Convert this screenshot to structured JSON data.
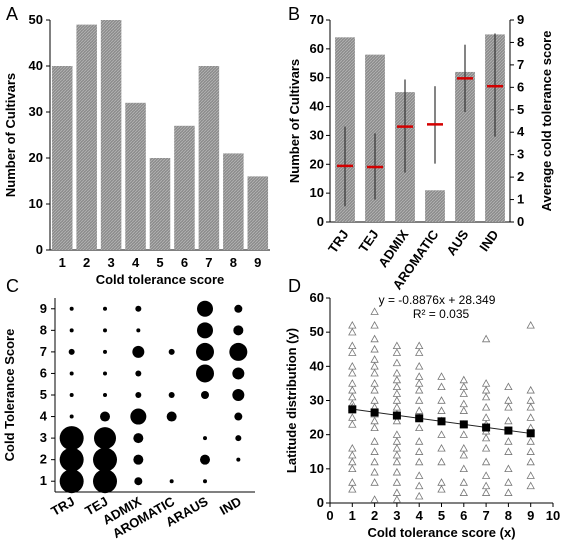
{
  "panel_letters": {
    "A": "A",
    "B": "B",
    "C": "C",
    "D": "D"
  },
  "chart_data": [
    {
      "panel": "A",
      "type": "bar",
      "categories": [
        "1",
        "2",
        "3",
        "4",
        "5",
        "6",
        "7",
        "8",
        "9"
      ],
      "values": [
        40,
        49,
        50,
        32,
        20,
        27,
        40,
        21,
        16
      ],
      "xlabel": "Cold tolerance score",
      "ylabel": "Number of Cultivars",
      "ylim": [
        0,
        50
      ],
      "yticks": [
        0,
        10,
        20,
        30,
        40,
        50
      ],
      "bar_color": "#8c8c8c",
      "grid": false
    },
    {
      "panel": "B",
      "type": "bar",
      "categories": [
        "TRJ",
        "TEJ",
        "ADMIX",
        "AROMATIC",
        "AUS",
        "IND"
      ],
      "values": [
        64,
        58,
        45,
        11,
        52,
        65
      ],
      "ylabel": "Number of Cultivars",
      "ylim": [
        0,
        70
      ],
      "yticks": [
        0,
        10,
        20,
        30,
        40,
        50,
        60,
        70
      ],
      "secondary": {
        "ylabel": "Average cold tolerance score",
        "ylim": [
          0,
          9
        ],
        "yticks": [
          0,
          1,
          2,
          3,
          4,
          5,
          6,
          7,
          8,
          9
        ],
        "means": [
          2.5,
          2.45,
          4.25,
          4.35,
          6.4,
          6.05
        ],
        "error_low": [
          0.7,
          1.0,
          2.2,
          2.6,
          4.9,
          3.8
        ],
        "error_high": [
          4.25,
          3.95,
          6.35,
          6.05,
          7.9,
          8.4
        ],
        "mean_color": "#d40000"
      },
      "bar_color": "#8c8c8c",
      "grid": false
    },
    {
      "panel": "C",
      "type": "scatter",
      "categories": [
        "TRJ",
        "TEJ",
        "ADMIX",
        "AROMATIC",
        "ARAUS",
        "IND"
      ],
      "ylabel": "Cold Tolerance Score",
      "ylim": [
        0.5,
        9.5
      ],
      "yticks": [
        1,
        2,
        3,
        4,
        5,
        6,
        7,
        8,
        9
      ],
      "bubble_radius_by_score": [
        [
          12,
          12,
          12,
          2,
          2,
          2,
          3,
          2,
          2
        ],
        [
          12,
          12,
          11,
          5,
          2,
          2,
          2,
          2,
          2
        ],
        [
          4,
          5,
          5,
          8,
          3,
          3,
          6,
          2,
          3
        ],
        [
          2,
          0,
          0,
          5,
          3,
          0,
          3,
          0,
          0
        ],
        [
          2,
          5,
          2,
          0,
          4,
          9,
          9,
          8,
          8
        ],
        [
          0,
          2,
          3,
          4,
          6,
          6,
          9,
          5,
          4
        ]
      ],
      "grid": false
    },
    {
      "panel": "D",
      "type": "scatter",
      "xlabel": "Cold tolerance score (x)",
      "ylabel": "Latitude distribution (y)",
      "xlim": [
        0,
        10
      ],
      "ylim": [
        0,
        60
      ],
      "xticks": [
        0,
        1,
        2,
        3,
        4,
        5,
        6,
        7,
        8,
        9,
        10
      ],
      "yticks": [
        0,
        10,
        20,
        30,
        40,
        50,
        60
      ],
      "equation": "y = -0.8876x + 28.349",
      "r_squared": "R² = 0.035",
      "fit": {
        "slope": -0.8876,
        "intercept": 28.349
      },
      "means": [
        {
          "x": 1,
          "y": 27.4
        },
        {
          "x": 2,
          "y": 26.5
        },
        {
          "x": 3,
          "y": 25.6
        },
        {
          "x": 4,
          "y": 24.8
        },
        {
          "x": 5,
          "y": 23.9
        },
        {
          "x": 6,
          "y": 23.0
        },
        {
          "x": 7,
          "y": 22.1
        },
        {
          "x": 8,
          "y": 21.2
        },
        {
          "x": 9,
          "y": 20.4
        }
      ],
      "points": [
        {
          "x": 1,
          "y": 52
        },
        {
          "x": 1,
          "y": 50
        },
        {
          "x": 1,
          "y": 46
        },
        {
          "x": 1,
          "y": 44
        },
        {
          "x": 1,
          "y": 40
        },
        {
          "x": 1,
          "y": 38
        },
        {
          "x": 1,
          "y": 35
        },
        {
          "x": 1,
          "y": 33
        },
        {
          "x": 1,
          "y": 31
        },
        {
          "x": 1,
          "y": 29
        },
        {
          "x": 1,
          "y": 28
        },
        {
          "x": 1,
          "y": 25
        },
        {
          "x": 1,
          "y": 23
        },
        {
          "x": 1,
          "y": 16
        },
        {
          "x": 1,
          "y": 14
        },
        {
          "x": 1,
          "y": 12
        },
        {
          "x": 1,
          "y": 10
        },
        {
          "x": 1,
          "y": 6
        },
        {
          "x": 1,
          "y": 4
        },
        {
          "x": 2,
          "y": 56
        },
        {
          "x": 2,
          "y": 52
        },
        {
          "x": 2,
          "y": 48
        },
        {
          "x": 2,
          "y": 45
        },
        {
          "x": 2,
          "y": 42
        },
        {
          "x": 2,
          "y": 40
        },
        {
          "x": 2,
          "y": 38
        },
        {
          "x": 2,
          "y": 35
        },
        {
          "x": 2,
          "y": 33
        },
        {
          "x": 2,
          "y": 30
        },
        {
          "x": 2,
          "y": 28
        },
        {
          "x": 2,
          "y": 26
        },
        {
          "x": 2,
          "y": 24
        },
        {
          "x": 2,
          "y": 22
        },
        {
          "x": 2,
          "y": 18
        },
        {
          "x": 2,
          "y": 15
        },
        {
          "x": 2,
          "y": 12
        },
        {
          "x": 2,
          "y": 9
        },
        {
          "x": 2,
          "y": 6
        },
        {
          "x": 2,
          "y": 1
        },
        {
          "x": 3,
          "y": 46
        },
        {
          "x": 3,
          "y": 44
        },
        {
          "x": 3,
          "y": 41
        },
        {
          "x": 3,
          "y": 38
        },
        {
          "x": 3,
          "y": 36
        },
        {
          "x": 3,
          "y": 34
        },
        {
          "x": 3,
          "y": 32
        },
        {
          "x": 3,
          "y": 30
        },
        {
          "x": 3,
          "y": 28
        },
        {
          "x": 3,
          "y": 26
        },
        {
          "x": 3,
          "y": 24
        },
        {
          "x": 3,
          "y": 20
        },
        {
          "x": 3,
          "y": 18
        },
        {
          "x": 3,
          "y": 16
        },
        {
          "x": 3,
          "y": 14
        },
        {
          "x": 3,
          "y": 12
        },
        {
          "x": 3,
          "y": 9
        },
        {
          "x": 3,
          "y": 6
        },
        {
          "x": 3,
          "y": 3
        },
        {
          "x": 3,
          "y": 1
        },
        {
          "x": 4,
          "y": 46
        },
        {
          "x": 4,
          "y": 44
        },
        {
          "x": 4,
          "y": 40
        },
        {
          "x": 4,
          "y": 37
        },
        {
          "x": 4,
          "y": 35
        },
        {
          "x": 4,
          "y": 33
        },
        {
          "x": 4,
          "y": 30
        },
        {
          "x": 4,
          "y": 27
        },
        {
          "x": 4,
          "y": 25
        },
        {
          "x": 4,
          "y": 22
        },
        {
          "x": 4,
          "y": 18
        },
        {
          "x": 4,
          "y": 15
        },
        {
          "x": 4,
          "y": 12
        },
        {
          "x": 4,
          "y": 8
        },
        {
          "x": 4,
          "y": 5
        },
        {
          "x": 4,
          "y": 2
        },
        {
          "x": 5,
          "y": 37
        },
        {
          "x": 5,
          "y": 34
        },
        {
          "x": 5,
          "y": 30
        },
        {
          "x": 5,
          "y": 27
        },
        {
          "x": 5,
          "y": 24
        },
        {
          "x": 5,
          "y": 20
        },
        {
          "x": 5,
          "y": 16
        },
        {
          "x": 5,
          "y": 12
        },
        {
          "x": 5,
          "y": 6
        },
        {
          "x": 5,
          "y": 4
        },
        {
          "x": 6,
          "y": 36
        },
        {
          "x": 6,
          "y": 34
        },
        {
          "x": 6,
          "y": 32
        },
        {
          "x": 6,
          "y": 29
        },
        {
          "x": 6,
          "y": 27
        },
        {
          "x": 6,
          "y": 23
        },
        {
          "x": 6,
          "y": 20
        },
        {
          "x": 6,
          "y": 16
        },
        {
          "x": 6,
          "y": 14
        },
        {
          "x": 6,
          "y": 10
        },
        {
          "x": 6,
          "y": 6
        },
        {
          "x": 6,
          "y": 3
        },
        {
          "x": 7,
          "y": 48
        },
        {
          "x": 7,
          "y": 35
        },
        {
          "x": 7,
          "y": 33
        },
        {
          "x": 7,
          "y": 31
        },
        {
          "x": 7,
          "y": 28
        },
        {
          "x": 7,
          "y": 25
        },
        {
          "x": 7,
          "y": 23
        },
        {
          "x": 7,
          "y": 21
        },
        {
          "x": 7,
          "y": 19
        },
        {
          "x": 7,
          "y": 16
        },
        {
          "x": 7,
          "y": 12
        },
        {
          "x": 7,
          "y": 8
        },
        {
          "x": 7,
          "y": 5
        },
        {
          "x": 7,
          "y": 3
        },
        {
          "x": 8,
          "y": 34
        },
        {
          "x": 8,
          "y": 30
        },
        {
          "x": 8,
          "y": 28
        },
        {
          "x": 8,
          "y": 24
        },
        {
          "x": 8,
          "y": 21
        },
        {
          "x": 8,
          "y": 18
        },
        {
          "x": 8,
          "y": 15
        },
        {
          "x": 8,
          "y": 10
        },
        {
          "x": 8,
          "y": 6
        },
        {
          "x": 8,
          "y": 3
        },
        {
          "x": 9,
          "y": 52
        },
        {
          "x": 9,
          "y": 33
        },
        {
          "x": 9,
          "y": 30
        },
        {
          "x": 9,
          "y": 28
        },
        {
          "x": 9,
          "y": 25
        },
        {
          "x": 9,
          "y": 22
        },
        {
          "x": 9,
          "y": 18
        },
        {
          "x": 9,
          "y": 15
        },
        {
          "x": 9,
          "y": 12
        },
        {
          "x": 9,
          "y": 8
        },
        {
          "x": 9,
          "y": 5
        }
      ],
      "grid": false
    }
  ]
}
